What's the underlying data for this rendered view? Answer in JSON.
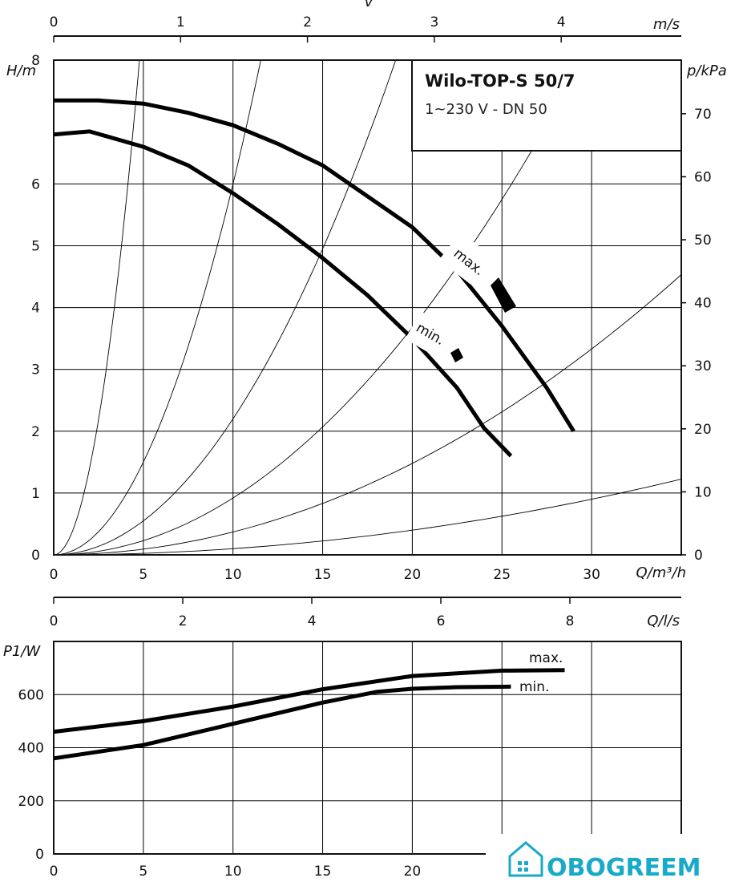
{
  "chart_data": [
    {
      "type": "line",
      "title": "Wilo-TOP-S 50/7",
      "subtitle": "1~230 V - DN 50",
      "xlabel": "Q/m³/h",
      "ylabel": "H/m",
      "y2label": "p/kPa",
      "xlim": [
        0,
        35
      ],
      "ylim": [
        0,
        8
      ],
      "y2lim": [
        0,
        80
      ],
      "x_ticks": [
        "0",
        "5",
        "10",
        "15",
        "20",
        "25",
        "30"
      ],
      "y_ticks": [
        "0",
        "1",
        "2",
        "3",
        "4",
        "5",
        "6",
        "8"
      ],
      "y2_ticks": [
        "0",
        "10",
        "20",
        "30",
        "40",
        "50",
        "60",
        "70"
      ],
      "top_axis": {
        "label": "v",
        "unit": "m/s",
        "ticks": [
          "0",
          "1",
          "2",
          "3",
          "4"
        ]
      },
      "secondary_x_axis": {
        "label": "Q/l/s",
        "ticks": [
          "0",
          "2",
          "4",
          "6",
          "8"
        ]
      },
      "series": [
        {
          "name": "max.",
          "x": [
            0,
            2.5,
            5,
            7.5,
            10,
            12.5,
            15,
            17.5,
            20,
            22.5,
            25,
            27.5,
            29.0
          ],
          "y": [
            7.35,
            7.35,
            7.3,
            7.15,
            6.95,
            6.65,
            6.3,
            5.8,
            5.3,
            4.6,
            3.7,
            2.7,
            2.0
          ]
        },
        {
          "name": "min.",
          "x": [
            0,
            2,
            5,
            7.5,
            10,
            12.5,
            15,
            17.5,
            20,
            22.5,
            24,
            25.5
          ],
          "y": [
            6.8,
            6.85,
            6.6,
            6.3,
            5.85,
            5.35,
            4.8,
            4.2,
            3.5,
            2.7,
            2.05,
            1.6
          ]
        }
      ],
      "system_curves_k": [
        0.35,
        0.06,
        0.022,
        0.0092,
        0.0037,
        0.001
      ],
      "annotations": [
        "max.",
        "min."
      ]
    },
    {
      "type": "line",
      "xlabel": "Q/m³/h",
      "ylabel": "P1/W",
      "xlim": [
        0,
        35
      ],
      "ylim": [
        0,
        800
      ],
      "x_ticks": [
        "0",
        "5",
        "10",
        "15",
        "20"
      ],
      "y_ticks": [
        "0",
        "200",
        "400",
        "600"
      ],
      "series": [
        {
          "name": "max.",
          "x": [
            0,
            5,
            10,
            15,
            20,
            25,
            28.5
          ],
          "y": [
            460,
            500,
            555,
            620,
            670,
            690,
            692
          ]
        },
        {
          "name": "min.",
          "x": [
            0,
            5,
            10,
            15,
            18,
            20,
            22.5,
            25.5
          ],
          "y": [
            360,
            410,
            490,
            570,
            610,
            622,
            628,
            630
          ]
        }
      ]
    }
  ],
  "watermark": "OBOGREEM",
  "colors": {
    "curve": "#000000",
    "grid": "#000000",
    "watermark": "#19a9c9"
  }
}
